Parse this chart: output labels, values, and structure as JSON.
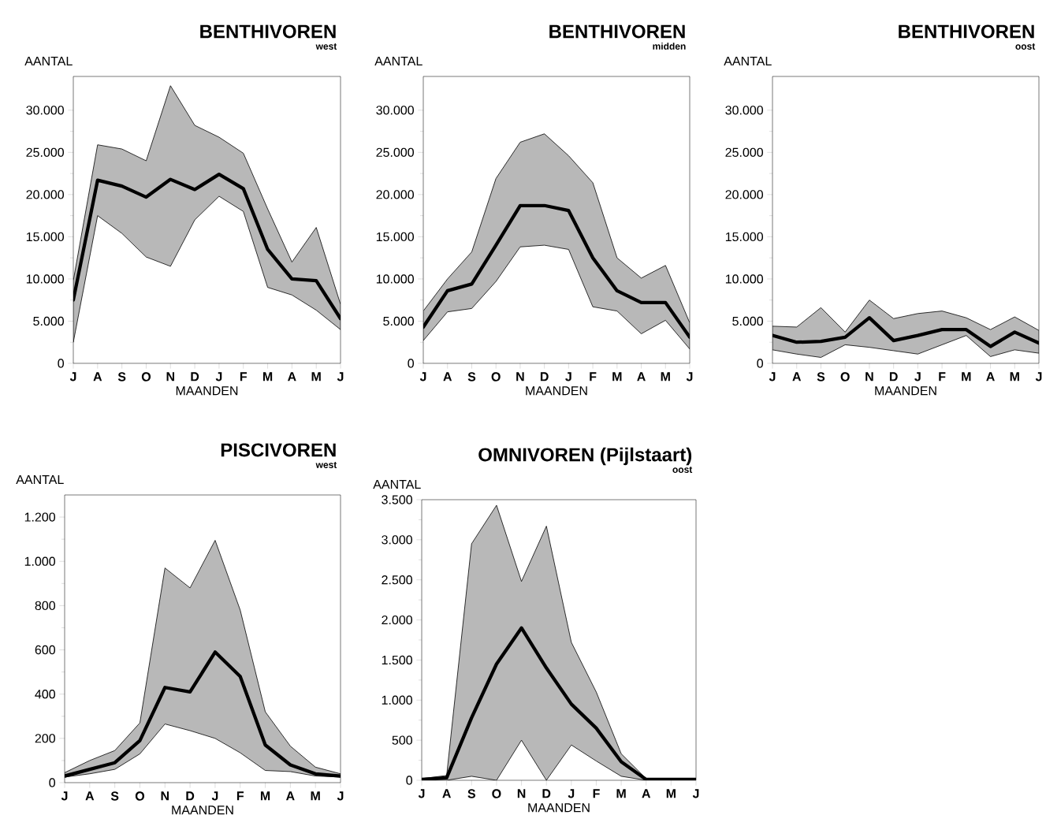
{
  "chart_data": [
    {
      "type": "line",
      "title": "BENTHIVOREN",
      "subtitle": "west",
      "xlabel": "MAANDEN",
      "ylabel": "AANTAL",
      "categories": [
        "J",
        "A",
        "S",
        "O",
        "N",
        "D",
        "J",
        "F",
        "M",
        "A",
        "M",
        "J"
      ],
      "series": [
        {
          "color": "#000000",
          "values": [
            7500,
            21700,
            21000,
            19700,
            21800,
            20600,
            22400,
            20700,
            13500,
            10000,
            9800,
            5300
          ],
          "upper": [
            9800,
            25900,
            25400,
            24000,
            32900,
            28200,
            26800,
            24900,
            18300,
            12000,
            16100,
            7000
          ],
          "lower": [
            2500,
            17500,
            15400,
            12600,
            11500,
            17000,
            19800,
            18000,
            9000,
            8100,
            6300,
            4000
          ]
        }
      ],
      "ylim": [
        0,
        34000
      ],
      "yticks": [
        0,
        {
          "value": 5000,
          "label": "5.000"
        },
        {
          "value": 10000,
          "label": "10.000"
        },
        {
          "value": 15000,
          "label": "15.000"
        },
        {
          "value": 20000,
          "label": "20.000"
        },
        {
          "value": 25000,
          "label": "25.000"
        },
        {
          "value": 30000,
          "label": "30.000"
        }
      ]
    },
    {
      "type": "line",
      "title": "BENTHIVOREN",
      "subtitle": "midden",
      "xlabel": "MAANDEN",
      "ylabel": "AANTAL",
      "categories": [
        "J",
        "A",
        "S",
        "O",
        "N",
        "D",
        "J",
        "F",
        "M",
        "A",
        "M",
        "J"
      ],
      "series": [
        {
          "color": "#000000",
          "values": [
            4300,
            8600,
            9400,
            14000,
            18700,
            18700,
            18100,
            12500,
            8600,
            7200,
            7200,
            3100
          ],
          "upper": [
            6200,
            10000,
            13200,
            21900,
            26200,
            27200,
            24600,
            21400,
            12500,
            10100,
            11600,
            4800
          ],
          "lower": [
            2700,
            6100,
            6500,
            9700,
            13800,
            14000,
            13500,
            6700,
            6200,
            3500,
            5100,
            1700
          ]
        }
      ],
      "ylim": [
        0,
        34000
      ],
      "yticks": [
        0,
        {
          "value": 5000,
          "label": "5.000"
        },
        {
          "value": 10000,
          "label": "10.000"
        },
        {
          "value": 15000,
          "label": "15.000"
        },
        {
          "value": 20000,
          "label": "20.000"
        },
        {
          "value": 25000,
          "label": "25.000"
        },
        {
          "value": 30000,
          "label": "30.000"
        }
      ]
    },
    {
      "type": "line",
      "title": "BENTHIVOREN",
      "subtitle": "oost",
      "xlabel": "MAANDEN",
      "ylabel": "AANTAL",
      "categories": [
        "J",
        "A",
        "S",
        "O",
        "N",
        "D",
        "J",
        "F",
        "M",
        "A",
        "M",
        "J"
      ],
      "series": [
        {
          "color": "#000000",
          "values": [
            3300,
            2500,
            2600,
            3100,
            5400,
            2700,
            3300,
            4000,
            4000,
            2000,
            3700,
            2400
          ],
          "upper": [
            4400,
            4300,
            6600,
            3700,
            7500,
            5300,
            5900,
            6200,
            5400,
            4000,
            5500,
            3900
          ],
          "lower": [
            1600,
            1100,
            700,
            2200,
            1900,
            1500,
            1100,
            2200,
            3300,
            800,
            1600,
            1200
          ]
        }
      ],
      "ylim": [
        0,
        34000
      ],
      "yticks": [
        0,
        {
          "value": 5000,
          "label": "5.000"
        },
        {
          "value": 10000,
          "label": "10.000"
        },
        {
          "value": 15000,
          "label": "15.000"
        },
        {
          "value": 20000,
          "label": "20.000"
        },
        {
          "value": 25000,
          "label": "25.000"
        },
        {
          "value": 30000,
          "label": "30.000"
        }
      ]
    },
    {
      "type": "line",
      "title": "PISCIVOREN",
      "subtitle": "west",
      "xlabel": "MAANDEN",
      "ylabel": "AANTAL",
      "categories": [
        "J",
        "A",
        "S",
        "O",
        "N",
        "D",
        "J",
        "F",
        "M",
        "A",
        "M",
        "J"
      ],
      "series": [
        {
          "color": "#000000",
          "values": [
            30,
            60,
            90,
            190,
            430,
            410,
            590,
            480,
            170,
            80,
            40,
            30
          ],
          "upper": [
            45,
            100,
            145,
            270,
            970,
            880,
            1095,
            780,
            320,
            165,
            70,
            40
          ],
          "lower": [
            25,
            40,
            60,
            130,
            265,
            235,
            200,
            135,
            55,
            50,
            30,
            25
          ]
        }
      ],
      "ylim": [
        0,
        1300
      ],
      "yticks": [
        0,
        200,
        400,
        600,
        800,
        {
          "value": 1000,
          "label": "1.000"
        },
        {
          "value": 1200,
          "label": "1.200"
        }
      ]
    },
    {
      "type": "line",
      "title": "OMNIVOREN (Pijlstaart)",
      "subtitle": "oost",
      "xlabel": "MAANDEN",
      "ylabel": "AANTAL",
      "categories": [
        "J",
        "A",
        "S",
        "O",
        "N",
        "D",
        "J",
        "F",
        "M",
        "A",
        "M",
        "J"
      ],
      "series": [
        {
          "color": "#000000",
          "values": [
            10,
            30,
            780,
            1450,
            1900,
            1400,
            950,
            650,
            230,
            10,
            10,
            10
          ],
          "upper": [
            20,
            60,
            2950,
            3430,
            2480,
            3170,
            1720,
            1100,
            330,
            20,
            20,
            20
          ],
          "lower": [
            0,
            0,
            50,
            0,
            500,
            0,
            440,
            240,
            50,
            0,
            0,
            0
          ]
        }
      ],
      "ylim": [
        0,
        3500
      ],
      "yticks": [
        0,
        500,
        {
          "value": 1000,
          "label": "1.000"
        },
        {
          "value": 1500,
          "label": "1.500"
        },
        {
          "value": 2000,
          "label": "2.000"
        },
        {
          "value": 2500,
          "label": "2.500"
        },
        {
          "value": 3000,
          "label": "3.000"
        },
        {
          "value": 3500,
          "label": "3.500"
        }
      ]
    }
  ]
}
